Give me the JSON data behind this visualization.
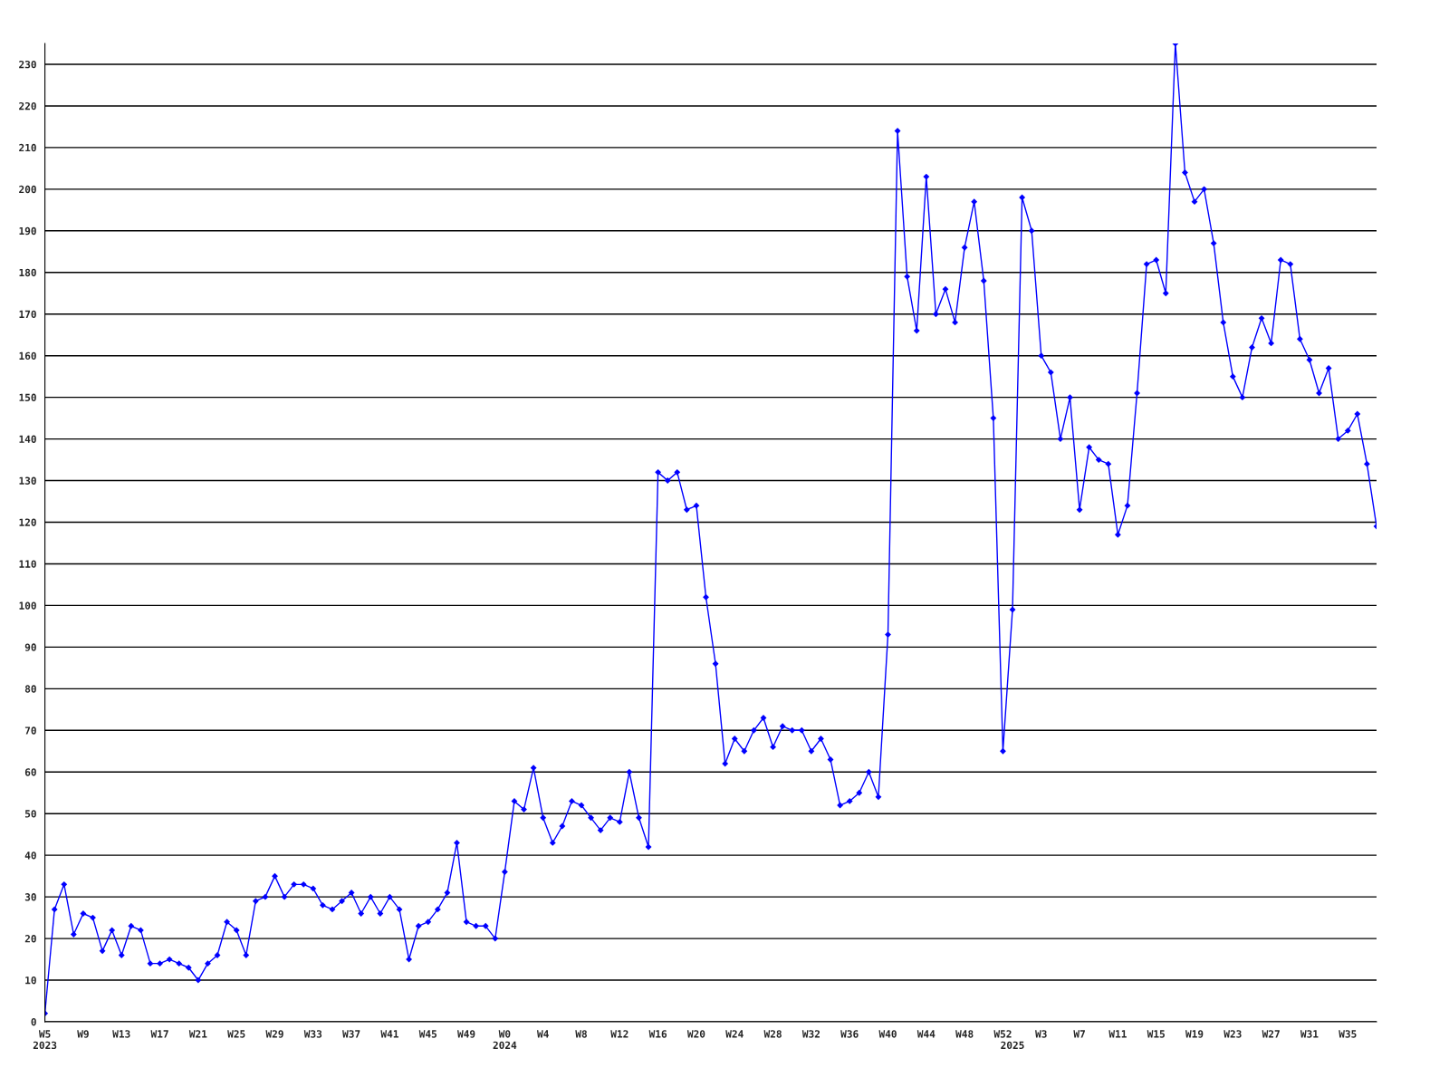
{
  "chart_data": {
    "type": "line",
    "categories": [
      "W5\n2023",
      null,
      null,
      null,
      "W9",
      null,
      null,
      null,
      "W13",
      null,
      null,
      null,
      "W17",
      null,
      null,
      null,
      "W21",
      null,
      null,
      null,
      "W25",
      null,
      null,
      null,
      "W29",
      null,
      null,
      null,
      "W33",
      null,
      null,
      null,
      "W37",
      null,
      null,
      null,
      "W41",
      null,
      null,
      null,
      "W45",
      null,
      null,
      null,
      "W49",
      null,
      null,
      null,
      "W0\n2024",
      null,
      null,
      null,
      "W4",
      null,
      null,
      null,
      "W8",
      null,
      null,
      null,
      "W12",
      null,
      null,
      null,
      "W16",
      null,
      null,
      null,
      "W20",
      null,
      null,
      null,
      "W24",
      null,
      null,
      null,
      "W28",
      null,
      null,
      null,
      "W32",
      null,
      null,
      null,
      "W36",
      null,
      null,
      null,
      "W40",
      null,
      null,
      null,
      "W44",
      null,
      null,
      null,
      "W48",
      null,
      null,
      null,
      "W52",
      "\n2025",
      null,
      null,
      "W3",
      null,
      null,
      null,
      "W7",
      null,
      null,
      null,
      "W11",
      null,
      null,
      null,
      "W15",
      null,
      null,
      null,
      "W19",
      null,
      null,
      null,
      "W23",
      null,
      null,
      null,
      "W27",
      null,
      null,
      null,
      "W31",
      null,
      null,
      null,
      "W35",
      null,
      null,
      null
    ],
    "series": [
      {
        "color": "#0000ff",
        "values": [
          2,
          27,
          33,
          21,
          26,
          25,
          17,
          22,
          16,
          23,
          22,
          14,
          14,
          15,
          14,
          13,
          10,
          14,
          16,
          24,
          22,
          16,
          29,
          30,
          35,
          30,
          33,
          33,
          32,
          28,
          27,
          29,
          31,
          26,
          30,
          26,
          30,
          27,
          15,
          23,
          24,
          27,
          31,
          43,
          24,
          23,
          23,
          20,
          36,
          53,
          51,
          61,
          49,
          43,
          47,
          53,
          52,
          49,
          46,
          49,
          48,
          60,
          49,
          42,
          132,
          130,
          132,
          123,
          124,
          102,
          86,
          62,
          68,
          65,
          70,
          73,
          66,
          71,
          70,
          70,
          65,
          68,
          63,
          52,
          53,
          55,
          60,
          54,
          93,
          214,
          179,
          166,
          203,
          170,
          176,
          168,
          186,
          197,
          178,
          145,
          65,
          99,
          198,
          190,
          160,
          156,
          140,
          150,
          123,
          138,
          135,
          134,
          117,
          124,
          151,
          182,
          183,
          175,
          235,
          204,
          197,
          200,
          187,
          168,
          155,
          150,
          162,
          169,
          163,
          183,
          182,
          164,
          159,
          151,
          157,
          140,
          142,
          146,
          134,
          119
        ]
      }
    ],
    "ylim": [
      0,
      235
    ],
    "yticks": [
      0,
      10,
      20,
      30,
      40,
      50,
      60,
      70,
      80,
      90,
      100,
      110,
      120,
      130,
      140,
      150,
      160,
      170,
      180,
      190,
      200,
      210,
      220,
      230
    ],
    "grid": "y",
    "marker": "diamond",
    "line_style": "solid"
  }
}
